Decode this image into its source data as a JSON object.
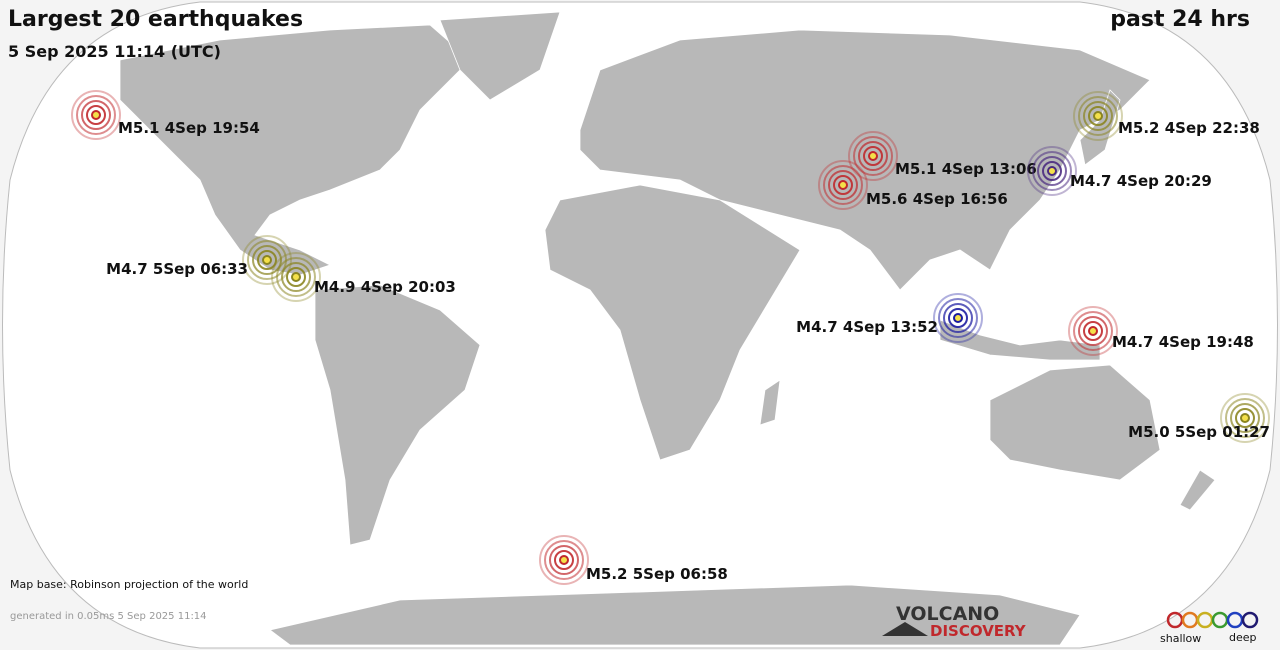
{
  "header": {
    "title": "Largest 20 earthquakes",
    "period": "past 24 hrs",
    "timestamp": "5 Sep 2025 11:14 (UTC)"
  },
  "quakes": [
    {
      "label": "M5.1  4Sep 19:54",
      "color": "#c0282c"
    },
    {
      "label": "M5.2  4Sep 22:38",
      "color": "#8a8420"
    },
    {
      "label": "M5.1  4Sep 13:06",
      "color": "#c0282c"
    },
    {
      "label": "M4.7  4Sep 20:29",
      "color": "#4a2a80"
    },
    {
      "label": "M5.6  4Sep 16:56",
      "color": "#c0282c"
    },
    {
      "label": "M4.7  5Sep 06:33",
      "color": "#8a8420"
    },
    {
      "label": "M4.9  4Sep 20:03",
      "color": "#8a8420"
    },
    {
      "label": "M4.7  4Sep 13:52",
      "color": "#1a1aa0"
    },
    {
      "label": "M4.7  4Sep 19:48",
      "color": "#c0282c"
    },
    {
      "label": "M5.0  5Sep 01:27",
      "color": "#8a8420"
    },
    {
      "label": "M5.2  5Sep 06:58",
      "color": "#c0282c"
    }
  ],
  "footer": {
    "map_base": "Map base: Robinson projection of the world",
    "generated": "generated in 0.05ms  5 Sep 2025 11:14",
    "logo_top": "VOLCANO",
    "logo_bottom": "DISCOVERY",
    "legend_shallow": "shallow",
    "legend_deep": "deep"
  }
}
